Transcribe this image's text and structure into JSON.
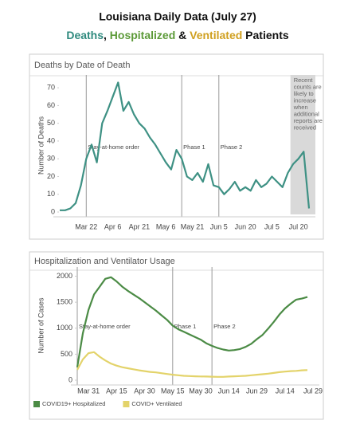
{
  "header": {
    "title": "Louisiana Daily Data (July 27)",
    "subtitle": [
      {
        "text": "Deaths",
        "color": "#2f8a7e"
      },
      {
        "text": ", ",
        "color": "#111111"
      },
      {
        "text": "Hospitalized",
        "color": "#5c9a38"
      },
      {
        "text": " & ",
        "color": "#111111"
      },
      {
        "text": "Ventilated",
        "color": "#d0a020"
      },
      {
        "text": " Patients",
        "color": "#111111"
      }
    ]
  },
  "chart_data": [
    {
      "type": "line",
      "title": "Deaths by Date of Death",
      "y_label": "Number of Deaths",
      "categories": [
        null,
        null,
        null,
        null,
        null,
        "Mar 22",
        null,
        null,
        null,
        null,
        "Apr 6",
        null,
        null,
        null,
        null,
        "Apr 21",
        null,
        null,
        null,
        null,
        "May 6",
        null,
        null,
        null,
        null,
        "May 21",
        null,
        null,
        null,
        null,
        "Jun 5",
        null,
        null,
        null,
        null,
        "Jun 20",
        null,
        null,
        null,
        null,
        "Jul 5",
        null,
        null,
        null,
        null,
        "Jul 20",
        null,
        null
      ],
      "values": [
        1,
        1,
        2,
        5,
        15,
        30,
        38,
        28,
        50,
        57,
        65,
        73,
        57,
        62,
        55,
        50,
        47,
        42,
        38,
        33,
        28,
        24,
        35,
        30,
        20,
        18,
        22,
        17,
        27,
        15,
        14,
        10,
        13,
        17,
        12,
        14,
        12,
        18,
        14,
        16,
        20,
        17,
        14,
        22,
        27,
        30,
        34,
        2
      ],
      "color": "#3e9184",
      "ylim": [
        0,
        75
      ],
      "yticks": [
        0,
        10,
        20,
        30,
        40,
        50,
        60,
        70
      ],
      "annotations": [
        "Stay-at-home order",
        "Phase 1",
        "Phase 2"
      ],
      "note": [
        "Recent",
        "counts are",
        "likely to",
        "increase",
        "when",
        "additional",
        "reports are",
        "received"
      ]
    },
    {
      "type": "line",
      "title": "Hospitalization and Ventilator Usage",
      "y_label": "Number of Cases",
      "categories": [
        null,
        null,
        "Mar 31",
        null,
        null,
        null,
        null,
        "Apr 15",
        null,
        null,
        null,
        null,
        "Apr 30",
        null,
        null,
        null,
        null,
        "May 15",
        null,
        null,
        null,
        null,
        "May 30",
        null,
        null,
        null,
        null,
        "Jun 14",
        null,
        null,
        null,
        null,
        "Jun 29",
        null,
        null,
        null,
        null,
        "Jul 14",
        null,
        null,
        null,
        null,
        "Jul 29"
      ],
      "series": [
        {
          "name": "COVID19+ Hospitalized",
          "color": "#4b8b45",
          "values": [
            250,
            900,
            1350,
            1650,
            1800,
            1950,
            1980,
            1900,
            1800,
            1720,
            1650,
            1580,
            1500,
            1420,
            1340,
            1250,
            1160,
            1050,
            980,
            930,
            880,
            830,
            780,
            710,
            660,
            620,
            590,
            570,
            580,
            600,
            640,
            700,
            790,
            870,
            990,
            1120,
            1260,
            1380,
            1470,
            1550,
            1570,
            1600,
            null
          ]
        },
        {
          "name": "COVID+ Ventilated",
          "color": "#e3d36a",
          "values": [
            200,
            400,
            520,
            540,
            450,
            380,
            320,
            280,
            250,
            230,
            210,
            190,
            175,
            160,
            150,
            135,
            120,
            105,
            95,
            85,
            80,
            75,
            72,
            70,
            68,
            65,
            65,
            70,
            75,
            80,
            85,
            95,
            105,
            115,
            125,
            140,
            155,
            165,
            175,
            180,
            190,
            195,
            null
          ]
        }
      ],
      "ylim": [
        0,
        2100
      ],
      "yticks": [
        0,
        500,
        1000,
        1500,
        2000
      ],
      "annotations": [
        "Stay-at-home order",
        "Phase 1",
        "Phase 2"
      ]
    }
  ]
}
